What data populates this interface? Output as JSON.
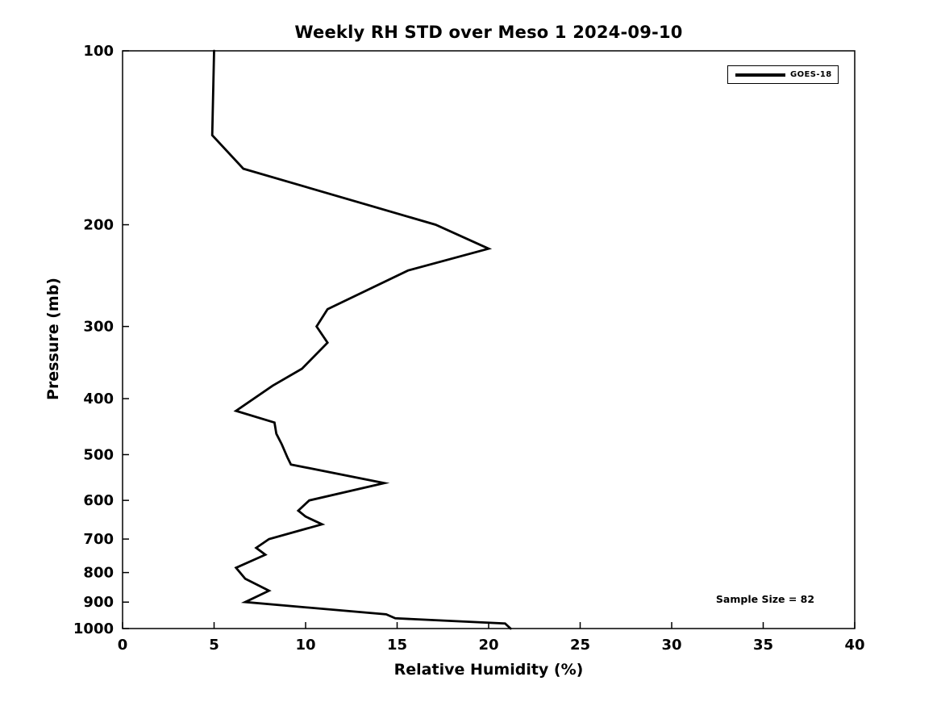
{
  "colors": {
    "background": "#ffffff",
    "axis": "#000000",
    "series_goes18": "#000000",
    "text": "#000000"
  },
  "chart_data": {
    "type": "line",
    "title": "Weekly RH STD over Meso 1 2024-09-10",
    "xlabel": "Relative Humidity (%)",
    "ylabel": "Pressure (mb)",
    "xlim": [
      0,
      40
    ],
    "ylim": [
      100,
      1000
    ],
    "x_scale": "linear",
    "y_scale": "log",
    "y_inverted": true,
    "grid": false,
    "x_ticks": [
      0,
      5,
      10,
      15,
      20,
      25,
      30,
      35,
      40
    ],
    "y_ticks": [
      100,
      200,
      300,
      400,
      500,
      600,
      700,
      800,
      900,
      1000
    ],
    "legend": {
      "position": "top-right",
      "entries": [
        {
          "label": "GOES-18",
          "color": "#000000",
          "line_width": 4
        }
      ]
    },
    "annotations": [
      {
        "text": "Sample Size = 82",
        "position": "bottom-right"
      }
    ],
    "series": [
      {
        "name": "GOES-18",
        "color": "#000000",
        "line_width": 2.8,
        "points": [
          {
            "pressure_mb": 100,
            "rh_std": 5.0
          },
          {
            "pressure_mb": 140,
            "rh_std": 4.9
          },
          {
            "pressure_mb": 160,
            "rh_std": 6.6
          },
          {
            "pressure_mb": 200,
            "rh_std": 17.1
          },
          {
            "pressure_mb": 220,
            "rh_std": 20.0
          },
          {
            "pressure_mb": 240,
            "rh_std": 15.6
          },
          {
            "pressure_mb": 280,
            "rh_std": 11.2
          },
          {
            "pressure_mb": 300,
            "rh_std": 10.6
          },
          {
            "pressure_mb": 320,
            "rh_std": 11.2
          },
          {
            "pressure_mb": 355,
            "rh_std": 9.8
          },
          {
            "pressure_mb": 380,
            "rh_std": 8.2
          },
          {
            "pressure_mb": 420,
            "rh_std": 6.2
          },
          {
            "pressure_mb": 440,
            "rh_std": 8.3
          },
          {
            "pressure_mb": 460,
            "rh_std": 8.4
          },
          {
            "pressure_mb": 480,
            "rh_std": 8.7
          },
          {
            "pressure_mb": 505,
            "rh_std": 9.0
          },
          {
            "pressure_mb": 520,
            "rh_std": 9.2
          },
          {
            "pressure_mb": 560,
            "rh_std": 14.3
          },
          {
            "pressure_mb": 600,
            "rh_std": 10.2
          },
          {
            "pressure_mb": 625,
            "rh_std": 9.6
          },
          {
            "pressure_mb": 640,
            "rh_std": 10.0
          },
          {
            "pressure_mb": 660,
            "rh_std": 10.9
          },
          {
            "pressure_mb": 700,
            "rh_std": 8.0
          },
          {
            "pressure_mb": 725,
            "rh_std": 7.3
          },
          {
            "pressure_mb": 745,
            "rh_std": 7.8
          },
          {
            "pressure_mb": 785,
            "rh_std": 6.2
          },
          {
            "pressure_mb": 820,
            "rh_std": 6.7
          },
          {
            "pressure_mb": 860,
            "rh_std": 8.0
          },
          {
            "pressure_mb": 900,
            "rh_std": 6.7
          },
          {
            "pressure_mb": 945,
            "rh_std": 14.4
          },
          {
            "pressure_mb": 960,
            "rh_std": 14.9
          },
          {
            "pressure_mb": 980,
            "rh_std": 20.9
          },
          {
            "pressure_mb": 1000,
            "rh_std": 21.2
          }
        ]
      }
    ]
  }
}
